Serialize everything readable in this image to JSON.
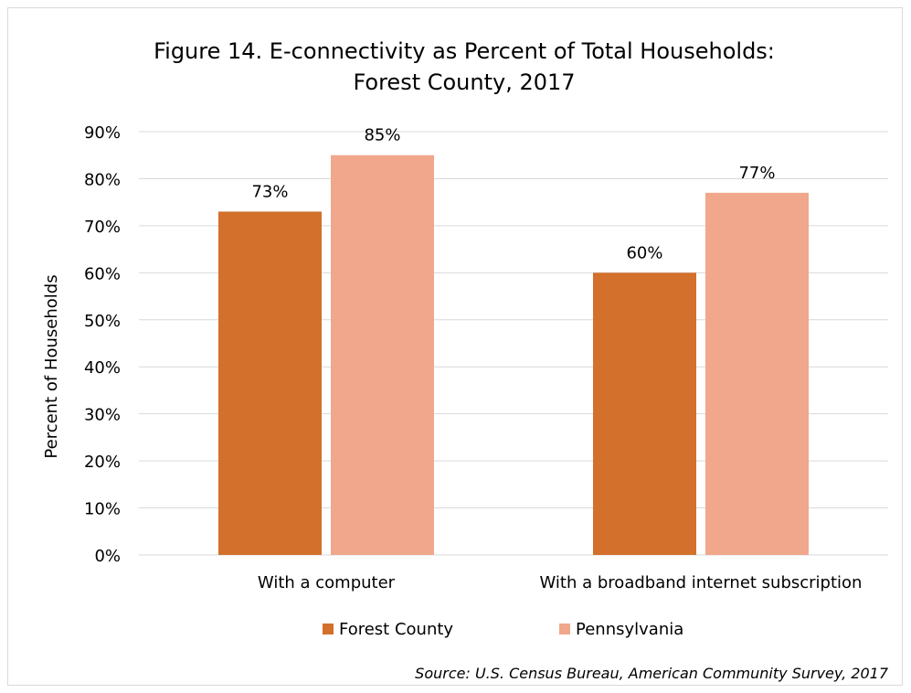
{
  "chart_data": {
    "type": "bar",
    "title": [
      "Figure 14. E-connectivity as Percent of Total Households:",
      "Forest County, 2017"
    ],
    "ylabel": "Percent of Households",
    "xlabel": "",
    "categories": [
      "With a computer",
      "With a broadband internet subscription"
    ],
    "series": [
      {
        "name": "Forest County",
        "values": [
          73,
          60
        ],
        "labels": [
          "73%",
          "60%"
        ],
        "color": "#D2702C"
      },
      {
        "name": "Pennsylvania",
        "values": [
          85,
          77
        ],
        "labels": [
          "85%",
          "77%"
        ],
        "color": "#F0A78B"
      }
    ],
    "ylim": [
      0,
      90
    ],
    "yticks": [
      "0%",
      "10%",
      "20%",
      "30%",
      "40%",
      "50%",
      "60%",
      "70%",
      "80%",
      "90%"
    ],
    "grid": true,
    "legend": "bottom"
  },
  "source": "Source: U.S. Census Bureau, American Community Survey, 2017",
  "colors": {
    "gridline": "#d9d9d9",
    "text": "#000000"
  }
}
